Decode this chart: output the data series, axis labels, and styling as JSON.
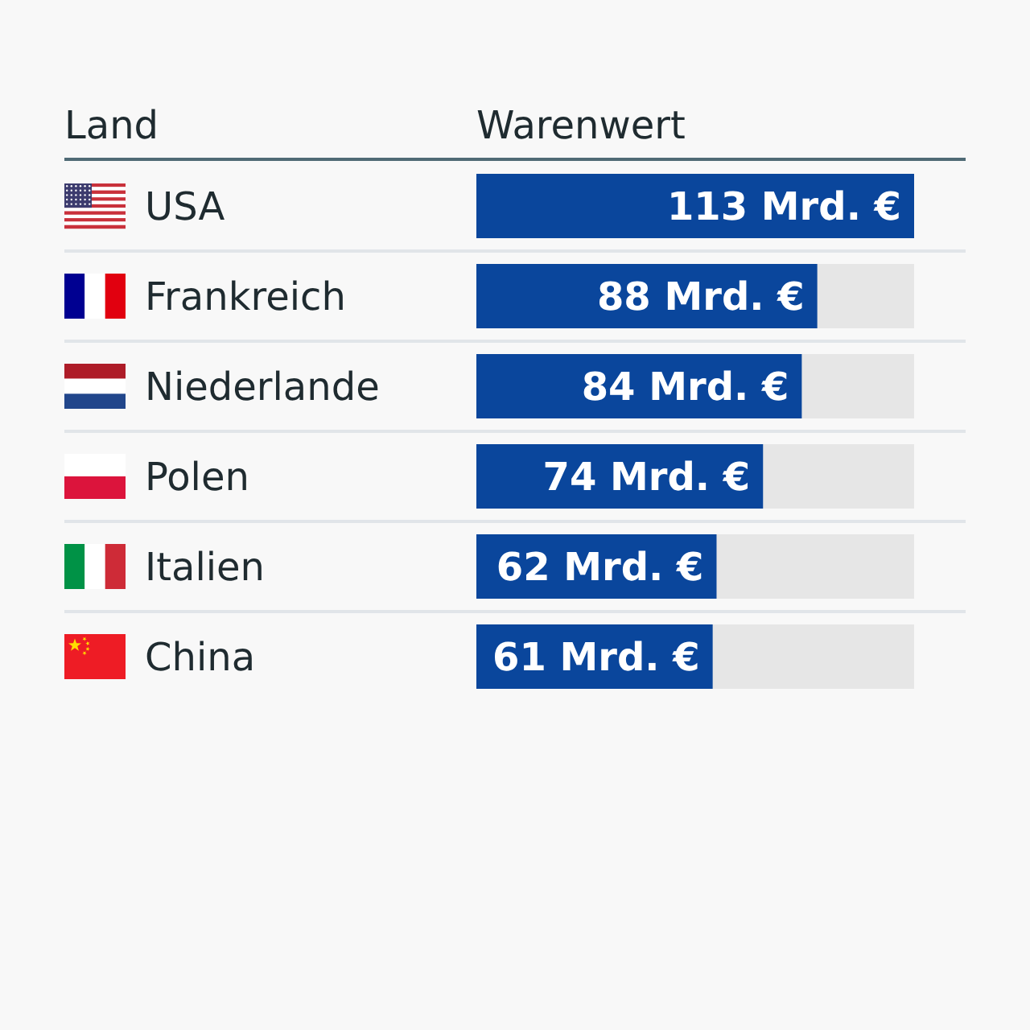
{
  "chart_data": {
    "type": "bar",
    "orientation": "horizontal",
    "xlabel": "Warenwert",
    "ylabel": "Land",
    "categories": [
      "USA",
      "Frankreich",
      "Niederlande",
      "Polen",
      "Italien",
      "China"
    ],
    "values": [
      113,
      88,
      84,
      74,
      62,
      61
    ],
    "value_labels": [
      "113 Mrd. €",
      "88 Mrd. €",
      "84 Mrd. €",
      "74 Mrd. €",
      "62 Mrd. €",
      "61 Mrd. €"
    ],
    "color": "#0a469c",
    "xlim": [
      0,
      113
    ],
    "grid": "y",
    "tick_labels": "y"
  }
}
